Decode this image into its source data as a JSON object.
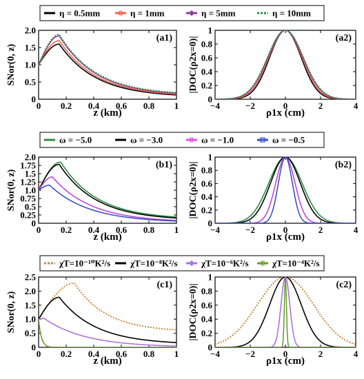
{
  "chart_data": [
    {
      "id": "a",
      "type": "line",
      "legend": {
        "entries": [
          {
            "label": "η = 0.5mm",
            "color": "#000000",
            "style": "solid",
            "marker": "none"
          },
          {
            "label": "η = 1mm",
            "color": "#f2644a",
            "style": "solid",
            "marker": "circle"
          },
          {
            "label": "η = 5mm",
            "color": "#8e3fa0",
            "style": "solid",
            "marker": "diamond"
          },
          {
            "label": "η = 10mm",
            "color": "#2b8c3e",
            "style": "dotted",
            "marker": "none"
          }
        ]
      },
      "panels": [
        {
          "id": "a1",
          "panel_label": "(a1)",
          "xlabel": "z (km)",
          "ylabel": "SNor(0, z)",
          "xlim": [
            0,
            1
          ],
          "ylim": [
            0,
            2
          ],
          "xticks": [
            "0",
            "0.2",
            "0.4",
            "0.6",
            "0.8",
            "1"
          ],
          "yticks": [
            "0",
            "0.5",
            "1.0",
            "1.5",
            "2.0"
          ],
          "curve_family": "s",
          "series": [
            {
              "name": "η = 0.5mm",
              "color": "#000000",
              "style": "solid",
              "peak": 1.6,
              "peak_z": 0.15,
              "tail": 0.06
            },
            {
              "name": "η = 1mm",
              "color": "#f2644a",
              "style": "solid",
              "peak": 1.7,
              "peak_z": 0.15,
              "tail": 0.08
            },
            {
              "name": "η = 5mm",
              "color": "#8e3fa0",
              "style": "solid",
              "peak": 1.84,
              "peak_z": 0.15,
              "tail": 0.1
            },
            {
              "name": "η = 10mm",
              "color": "#2b8c3e",
              "style": "dotted",
              "peak": 1.88,
              "peak_z": 0.15,
              "tail": 0.12
            }
          ]
        },
        {
          "id": "a2",
          "panel_label": "(a2)",
          "xlabel": "ρ1x (cm)",
          "ylabel": "|DOC(ρ2x=0)|",
          "xlim": [
            -4,
            4
          ],
          "ylim": [
            0,
            1
          ],
          "xticks": [
            "−4",
            "−2",
            "0",
            "2",
            "4"
          ],
          "yticks": [
            "0",
            "0.2",
            "0.4",
            "0.6",
            "0.8",
            "1"
          ],
          "curve_family": "g",
          "series": [
            {
              "name": "η = 0.5mm",
              "color": "#000000",
              "style": "solid",
              "width": 0.9
            },
            {
              "name": "η = 1mm",
              "color": "#f2644a",
              "style": "solid",
              "width": 0.95
            },
            {
              "name": "η = 5mm",
              "color": "#8e3fa0",
              "style": "solid",
              "width": 1.0
            },
            {
              "name": "η = 10mm",
              "color": "#2b8c3e",
              "style": "dotted",
              "width": 1.02
            }
          ]
        }
      ]
    },
    {
      "id": "b",
      "type": "line",
      "legend": {
        "entries": [
          {
            "label": "ω = −5.0",
            "color": "#2b8c3e",
            "style": "solid",
            "marker": "none"
          },
          {
            "label": "ω = −3.0",
            "color": "#000000",
            "style": "solid",
            "marker": "none"
          },
          {
            "label": "ω = −1.0",
            "color": "#e055e0",
            "style": "solid",
            "marker": "circle"
          },
          {
            "label": "ω = −0.5",
            "color": "#3a4fc8",
            "style": "solid",
            "marker": "square"
          }
        ]
      },
      "panels": [
        {
          "id": "b1",
          "panel_label": "(b1)",
          "xlabel": "z (km)",
          "ylabel": "SNor(0, z)",
          "xlim": [
            0,
            1
          ],
          "ylim": [
            0,
            2
          ],
          "xticks": [
            "0",
            "0.2",
            "0.4",
            "0.6",
            "0.8",
            "1"
          ],
          "yticks": [
            "0",
            "0.25",
            "0.5",
            "0.75",
            "1.0",
            "1.25",
            "1.5",
            "1.75",
            "2.0"
          ],
          "curve_family": "s",
          "series": [
            {
              "name": "ω = −5.0",
              "color": "#2b8c3e",
              "style": "solid",
              "peak": 1.85,
              "peak_z": 0.16,
              "tail": 0.12
            },
            {
              "name": "ω = −3.0",
              "color": "#000000",
              "style": "solid",
              "peak": 1.78,
              "peak_z": 0.15,
              "tail": 0.09
            },
            {
              "name": "ω = −1.0",
              "color": "#c044d8",
              "style": "solid",
              "peak": 1.4,
              "peak_z": 0.1,
              "tail": 0.03
            },
            {
              "name": "ω = −0.5",
              "color": "#3a4fc8",
              "style": "solid",
              "peak": 1.15,
              "peak_z": 0.08,
              "tail": 0.02
            }
          ]
        },
        {
          "id": "b2",
          "panel_label": "(b2)",
          "xlabel": "ρ1x (cm)",
          "ylabel": "|DOC(ρ2x=0)|",
          "xlim": [
            -4,
            4
          ],
          "ylim": [
            0,
            1
          ],
          "xticks": [
            "−4",
            "−2",
            "0",
            "2",
            "4"
          ],
          "yticks": [
            "0",
            "0.2",
            "0.4",
            "0.6",
            "0.8",
            "1"
          ],
          "curve_family": "g",
          "series": [
            {
              "name": "ω = −5.0",
              "color": "#2b8c3e",
              "style": "solid",
              "width": 0.95
            },
            {
              "name": "ω = −3.0",
              "color": "#000000",
              "style": "solid",
              "width": 0.85
            },
            {
              "name": "ω = −1.0",
              "color": "#c044d8",
              "style": "solid",
              "width": 0.55
            },
            {
              "name": "ω = −0.5",
              "color": "#3a4fc8",
              "style": "solid",
              "width": 0.4
            }
          ]
        }
      ]
    },
    {
      "id": "c",
      "type": "line",
      "legend": {
        "entries": [
          {
            "label": "χT=10⁻¹⁰K²/s",
            "color": "#c8863a",
            "style": "dotted",
            "marker": "none"
          },
          {
            "label": "χT=10⁻⁸K²/s",
            "color": "#000000",
            "style": "solid",
            "marker": "none"
          },
          {
            "label": "χT=10⁻⁶K²/s",
            "color": "#b070e0",
            "style": "solid",
            "marker": "diamond"
          },
          {
            "label": "χT=10⁻⁴K²/s",
            "color": "#6aa030",
            "style": "solid",
            "marker": "circle"
          }
        ]
      },
      "panels": [
        {
          "id": "c1",
          "panel_label": "(c1)",
          "xlabel": "z (km)",
          "ylabel": "SNor(0, z)",
          "xlim": [
            0,
            1
          ],
          "ylim": [
            0,
            2.5
          ],
          "xticks": [
            "0",
            "0.2",
            "0.4",
            "0.6",
            "0.8",
            "1"
          ],
          "yticks": [
            "0",
            "0.5",
            "1.0",
            "1.5",
            "2.0",
            "2.5"
          ],
          "curve_family": "s",
          "series": [
            {
              "name": "χT=10⁻¹⁰K²/s",
              "color": "#c8863a",
              "style": "dotted",
              "peak": 2.28,
              "peak_z": 0.26,
              "tail": 0.55
            },
            {
              "name": "χT=10⁻⁸K²/s",
              "color": "#000000",
              "style": "solid",
              "peak": 1.78,
              "peak_z": 0.15,
              "tail": 0.1
            },
            {
              "name": "χT=10⁻⁶K²/s",
              "color": "#b070e0",
              "style": "solid",
              "peak": 1.03,
              "peak_z": 0.04,
              "tail": 0.0
            },
            {
              "name": "χT=10⁻⁴K²/s",
              "color": "#6aa030",
              "style": "solid",
              "peak": 1.0,
              "peak_z": 0.0,
              "tail": 0.0
            }
          ]
        },
        {
          "id": "c2",
          "panel_label": "(c2)",
          "xlabel": "ρ1x (cm)",
          "ylabel": "|DOC(ρ2x=0)|",
          "xlim": [
            -4,
            4
          ],
          "ylim": [
            0,
            1
          ],
          "xticks": [
            "−4",
            "−2",
            "0",
            "2",
            "4"
          ],
          "yticks": [
            "0",
            "0.2",
            "0.4",
            "0.6",
            "0.8",
            "1"
          ],
          "curve_family": "g",
          "series": [
            {
              "name": "χT=10⁻¹⁰K²/s",
              "color": "#c8863a",
              "style": "dotted",
              "width": 1.6
            },
            {
              "name": "χT=10⁻⁸K²/s",
              "color": "#000000",
              "style": "solid",
              "width": 0.9
            },
            {
              "name": "χT=10⁻⁶K²/s",
              "color": "#b070e0",
              "style": "solid",
              "width": 0.25
            },
            {
              "name": "χT=10⁻⁴K²/s",
              "color": "#6aa030",
              "style": "solid",
              "width": 0.06
            }
          ]
        }
      ]
    }
  ]
}
